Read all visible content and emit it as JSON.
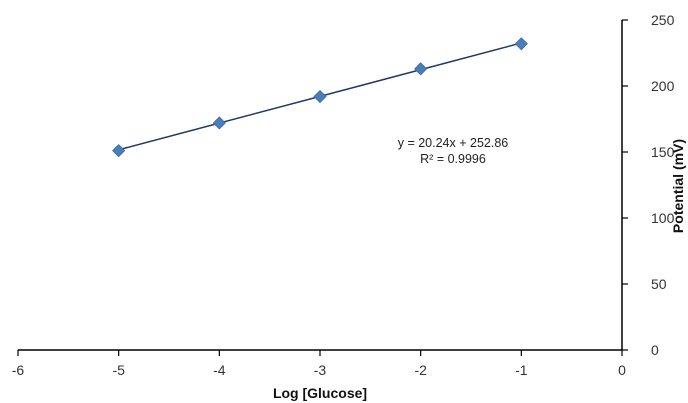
{
  "chart_data": {
    "type": "scatter",
    "title": "",
    "xlabel": "Log [Glucose]",
    "ylabel": "Potential (mV)",
    "xlim": [
      -6,
      0
    ],
    "ylim": [
      0,
      250
    ],
    "xticks": [
      "-6",
      "-5",
      "-4",
      "-3",
      "-2",
      "-1",
      "0"
    ],
    "yticks": [
      "0",
      "50",
      "100",
      "150",
      "200",
      "250"
    ],
    "grid": false,
    "legend": "none",
    "y_axis_side": "right",
    "series": [
      {
        "x": [
          -5,
          -4,
          -3,
          -2,
          -1
        ],
        "y": [
          151,
          172,
          192,
          213,
          232
        ],
        "marker": "diamond",
        "color": "#4a7ebb"
      }
    ],
    "trendline": {
      "type": "linear",
      "slope": 20.24,
      "intercept": 252.86,
      "x_range": [
        -5,
        -1
      ],
      "color": "#1f3864"
    },
    "annotations": [
      "y = 20.24x + 252.86",
      "R² = 0.9996"
    ]
  }
}
